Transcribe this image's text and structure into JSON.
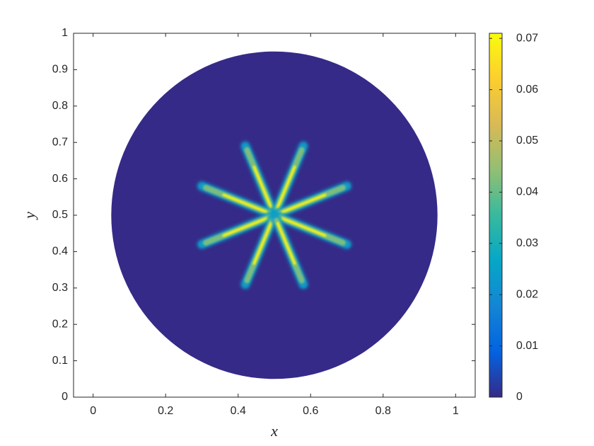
{
  "chart_data": {
    "type": "disk-field",
    "xlabel": "x",
    "ylabel": "y",
    "xlim": [
      -0.054,
      1.054
    ],
    "ylim": [
      0,
      1
    ],
    "xticks": [
      0,
      0.2,
      0.4,
      0.6,
      0.8,
      1
    ],
    "yticks": [
      0,
      0.1,
      0.2,
      0.3,
      0.4,
      0.5,
      0.6,
      0.7,
      0.8,
      0.9,
      1
    ],
    "colormap": "parula",
    "clim": [
      0,
      0.071
    ],
    "cticks": [
      0,
      0.01,
      0.02,
      0.03,
      0.04,
      0.05,
      0.06,
      0.07
    ],
    "disk": {
      "center": [
        0.5,
        0.5
      ],
      "radius": 0.45,
      "value": 0
    },
    "arms": [
      {
        "x": [
          0.5,
          0.42
        ],
        "y": [
          0.5,
          0.69
        ],
        "peak": 0.07
      },
      {
        "x": [
          0.5,
          0.58
        ],
        "y": [
          0.5,
          0.69
        ],
        "peak": 0.07
      },
      {
        "x": [
          0.5,
          0.3
        ],
        "y": [
          0.5,
          0.58
        ],
        "peak": 0.07
      },
      {
        "x": [
          0.5,
          0.7
        ],
        "y": [
          0.5,
          0.58
        ],
        "peak": 0.07
      },
      {
        "x": [
          0.5,
          0.3
        ],
        "y": [
          0.5,
          0.42
        ],
        "peak": 0.07
      },
      {
        "x": [
          0.5,
          0.7
        ],
        "y": [
          0.5,
          0.42
        ],
        "peak": 0.07
      },
      {
        "x": [
          0.5,
          0.42
        ],
        "y": [
          0.5,
          0.31
        ],
        "peak": 0.07
      },
      {
        "x": [
          0.5,
          0.58
        ],
        "y": [
          0.5,
          0.31
        ],
        "peak": 0.07
      }
    ]
  }
}
